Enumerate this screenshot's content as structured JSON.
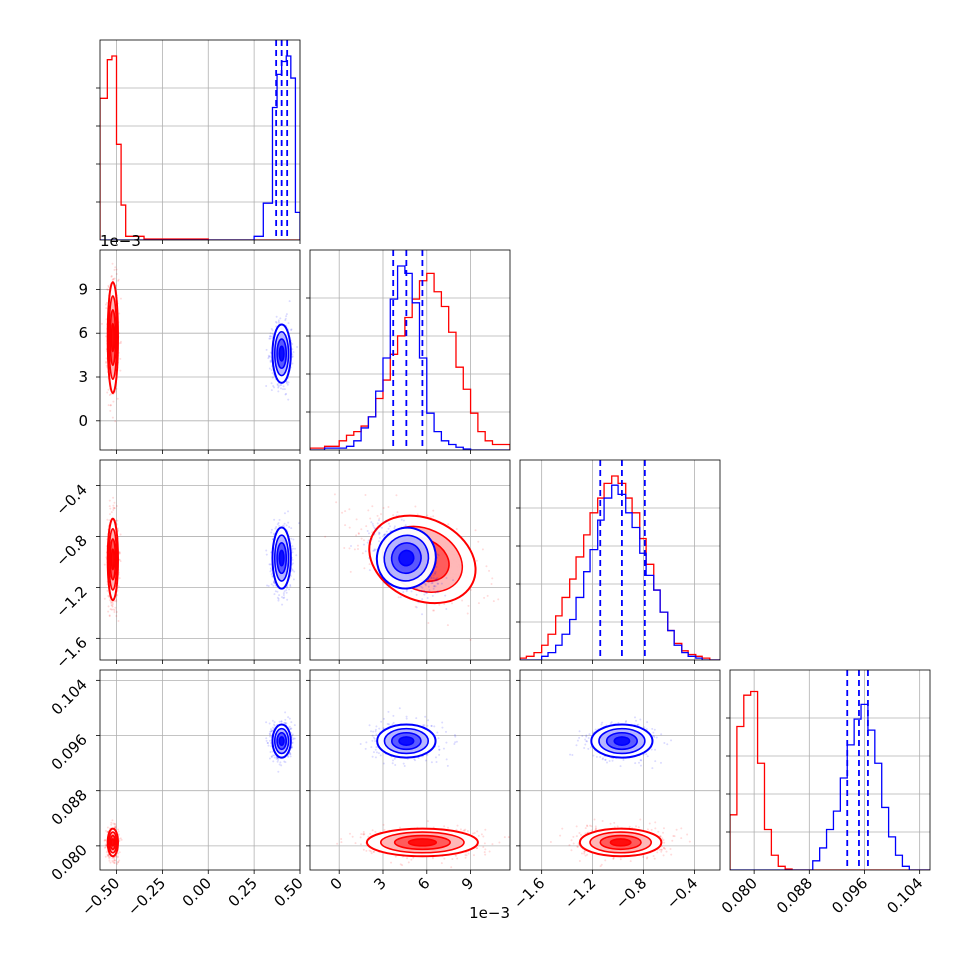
{
  "chart_data": {
    "type": "corner",
    "colors": {
      "run_a": "#ff0000",
      "run_b": "#0000ff"
    },
    "parameters": [
      {
        "range": [
          -0.59,
          0.5
        ],
        "ticks": [
          -0.5,
          -0.25,
          0.0,
          0.25,
          0.5
        ],
        "tick_labels": [
          "−0.50",
          "−0.25",
          "0.00",
          "0.25",
          "0.50"
        ]
      },
      {
        "range": [
          -2.0,
          11.7
        ],
        "ticks": [
          0,
          3,
          6,
          9
        ],
        "tick_labels": [
          "0",
          "3",
          "6",
          "9"
        ],
        "offset_label": "1e−3"
      },
      {
        "range": [
          -1.77,
          -0.2
        ],
        "ticks": [
          -1.6,
          -1.2,
          -0.8,
          -0.4
        ],
        "tick_labels": [
          "−1.6",
          "−1.2",
          "−0.8",
          "−0.4"
        ]
      },
      {
        "range": [
          0.0765,
          0.1055
        ],
        "ticks": [
          0.08,
          0.088,
          0.096,
          0.104
        ],
        "tick_labels": [
          "0.080",
          "0.088",
          "0.096",
          "0.104"
        ]
      }
    ],
    "series": [
      {
        "color": "#ff0000",
        "mean": [
          -0.52,
          0.0057,
          -0.98,
          0.0805
        ],
        "std": [
          0.014,
          0.0019,
          0.16,
          0.001
        ],
        "hist": [
          {
            "edges": [
              -0.59,
              -0.55,
              -0.525,
              -0.5,
              -0.475,
              -0.45,
              -0.35,
              0.0,
              0.5
            ],
            "counts": [
              0.77,
              0.98,
              1.0,
              0.52,
              0.19,
              0.02,
              0.005,
              0
            ]
          },
          {
            "edges": [
              -2.0,
              -1.0,
              0,
              0.5,
              1.0,
              1.5,
              2.0,
              2.5,
              3.0,
              3.5,
              4.0,
              4.5,
              5.0,
              5.5,
              6.0,
              6.5,
              7.0,
              7.5,
              8.0,
              8.5,
              9.0,
              9.5,
              10.0,
              10.5,
              11.7
            ],
            "counts": [
              0.01,
              0.02,
              0.05,
              0.08,
              0.1,
              0.13,
              0.18,
              0.28,
              0.38,
              0.52,
              0.62,
              0.72,
              0.82,
              0.92,
              0.96,
              0.86,
              0.78,
              0.64,
              0.45,
              0.33,
              0.2,
              0.1,
              0.05,
              0.03
            ]
          },
          {
            "edges": [
              -1.77,
              -1.72,
              -1.66,
              -1.6,
              -1.55,
              -1.49,
              -1.44,
              -1.38,
              -1.33,
              -1.27,
              -1.22,
              -1.16,
              -1.11,
              -1.05,
              -1.0,
              -0.94,
              -0.89,
              -0.83,
              -0.78,
              -0.72,
              -0.67,
              -0.61,
              -0.56,
              -0.5,
              -0.45,
              -0.39,
              -0.34,
              -0.28,
              -0.2
            ],
            "counts": [
              0.01,
              0.02,
              0.04,
              0.08,
              0.14,
              0.24,
              0.34,
              0.44,
              0.56,
              0.68,
              0.8,
              0.88,
              0.96,
              1.0,
              0.96,
              0.88,
              0.8,
              0.66,
              0.52,
              0.38,
              0.26,
              0.16,
              0.09,
              0.05,
              0.03,
              0.02,
              0.01,
              0.0
            ]
          },
          {
            "edges": [
              0.0765,
              0.0775,
              0.0785,
              0.0795,
              0.0805,
              0.0815,
              0.0825,
              0.0835,
              0.0845,
              0.0855,
              0.1055
            ],
            "counts": [
              0.3,
              0.78,
              0.95,
              0.97,
              0.58,
              0.22,
              0.08,
              0.02,
              0.005,
              0
            ]
          }
        ]
      },
      {
        "color": "#0000ff",
        "mean": [
          0.4,
          0.0046,
          -0.97,
          0.0952
        ],
        "std": [
          0.025,
          0.001,
          0.12,
          0.0012
        ],
        "quantiles": [
          [
            0.37,
            0.4,
            0.43
          ],
          [
            0.0037,
            0.0046,
            0.0057
          ],
          [
            -1.14,
            -0.97,
            -0.79
          ],
          [
            0.0935,
            0.0952,
            0.0965
          ]
        ],
        "hist": [
          {
            "edges": [
              -0.59,
              0.25,
              0.3,
              0.35,
              0.375,
              0.4,
              0.425,
              0.45,
              0.475,
              0.5
            ],
            "counts": [
              0,
              0.02,
              0.2,
              0.72,
              0.9,
              0.97,
              1.0,
              0.88,
              0.15
            ]
          },
          {
            "edges": [
              -2.0,
              -1.0,
              0.5,
              1.0,
              1.5,
              2.0,
              2.5,
              3.0,
              3.5,
              4.0,
              4.5,
              5.0,
              5.5,
              6.0,
              6.5,
              7.0,
              7.5,
              8.0,
              8.5,
              9.0,
              11.7
            ],
            "counts": [
              0,
              0.01,
              0.02,
              0.05,
              0.12,
              0.18,
              0.32,
              0.5,
              0.82,
              1.0,
              0.96,
              0.8,
              0.5,
              0.2,
              0.1,
              0.05,
              0.03,
              0.015,
              0.005,
              0
            ]
          },
          {
            "edges": [
              -1.77,
              -1.6,
              -1.55,
              -1.49,
              -1.44,
              -1.38,
              -1.33,
              -1.27,
              -1.22,
              -1.16,
              -1.11,
              -1.05,
              -1.0,
              -0.94,
              -0.89,
              -0.83,
              -0.78,
              -0.72,
              -0.67,
              -0.61,
              -0.56,
              -0.5,
              -0.45,
              -0.39,
              -0.34,
              -0.2
            ],
            "counts": [
              0,
              0.02,
              0.04,
              0.08,
              0.14,
              0.22,
              0.34,
              0.48,
              0.6,
              0.76,
              0.88,
              0.95,
              0.9,
              0.8,
              0.72,
              0.58,
              0.46,
              0.38,
              0.26,
              0.16,
              0.08,
              0.04,
              0.02,
              0.01,
              0
            ]
          },
          {
            "edges": [
              0.0765,
              0.0885,
              0.0895,
              0.0905,
              0.0915,
              0.0925,
              0.0935,
              0.0945,
              0.0955,
              0.0965,
              0.0975,
              0.0985,
              0.0995,
              0.1005,
              0.1015,
              0.1025,
              0.1055
            ],
            "counts": [
              0,
              0.05,
              0.12,
              0.22,
              0.32,
              0.5,
              0.68,
              0.82,
              0.9,
              0.76,
              0.58,
              0.34,
              0.18,
              0.08,
              0.02,
              0
            ]
          }
        ]
      }
    ],
    "offset_labels": [
      {
        "text": "1e−3",
        "position": "top-left of row 2 y-axis"
      },
      {
        "text": "1e−3",
        "position": "below column 2 x-axis"
      }
    ],
    "grid": true,
    "legend": "none"
  }
}
